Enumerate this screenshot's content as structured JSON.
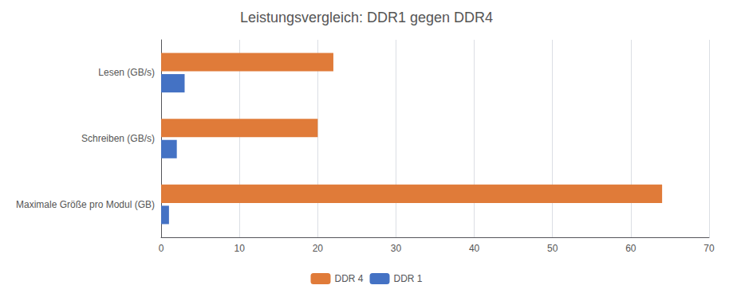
{
  "chart_data": {
    "type": "bar",
    "orientation": "horizontal",
    "title": "Leistungsvergleich: DDR1 gegen DDR4",
    "categories": [
      "Maximale Größe pro Modul (GB)",
      "Schreiben (GB/s)",
      "Lesen (GB/s)"
    ],
    "series": [
      {
        "name": "DDR 4",
        "color": "#E07B39",
        "values": [
          64,
          20,
          22
        ]
      },
      {
        "name": "DDR 1",
        "color": "#4472C4",
        "values": [
          1,
          2,
          3
        ]
      }
    ],
    "xlim": [
      0,
      70
    ],
    "xticks": [
      0,
      10,
      20,
      30,
      40,
      50,
      60,
      70
    ],
    "grid": true,
    "legend": "bottom"
  }
}
